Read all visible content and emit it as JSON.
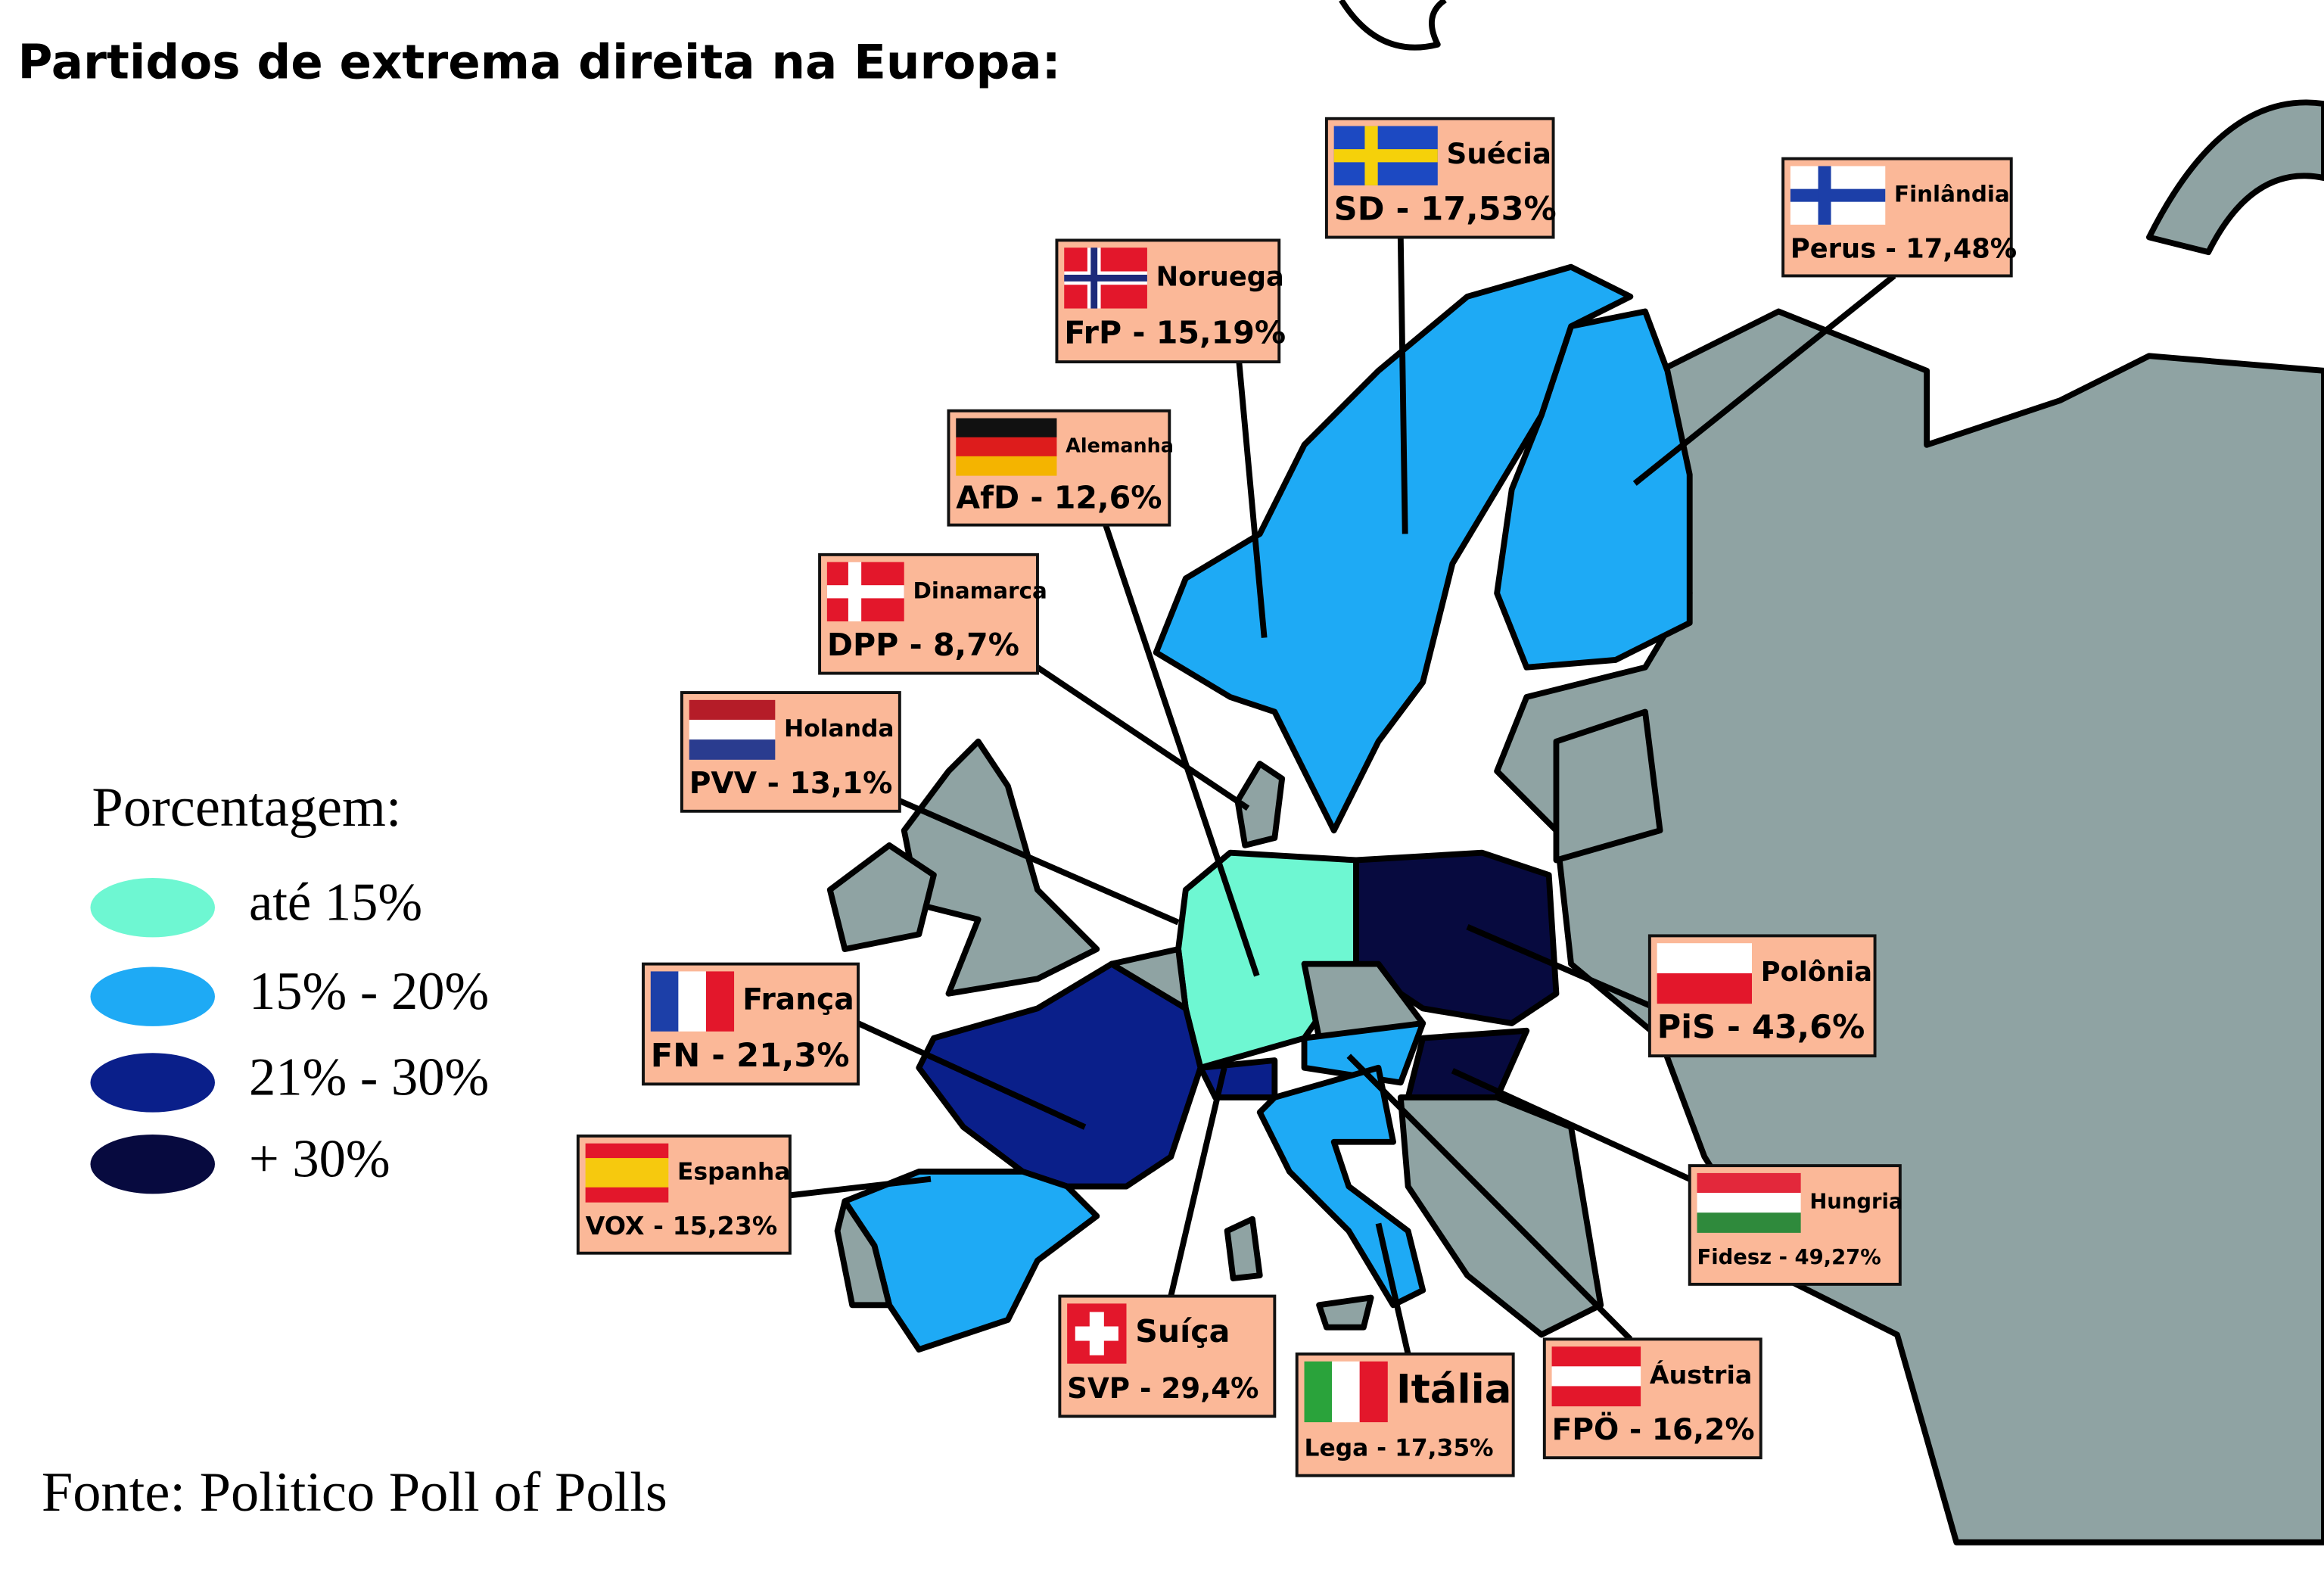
{
  "title": "Partidos de extrema direita na Europa:",
  "legend": {
    "title": "Porcentagem:",
    "items": [
      {
        "label": "até 15%",
        "color": "#6ef7d2"
      },
      {
        "label": "15% - 20%",
        "color": "#1eaaf5"
      },
      {
        "label": "21% -  30%",
        "color": "#0a1f8a"
      },
      {
        "label": "+ 30%",
        "color": "#070a3f"
      }
    ]
  },
  "callouts": [
    {
      "country": "Suécia",
      "party": "SD - 17,53%"
    },
    {
      "country": "Finlândia",
      "party": "Perus - 17,48%"
    },
    {
      "country": "Noruega",
      "party": "FrP - 15,19%"
    },
    {
      "country": "Alemanha",
      "party": "AfD - 12,6%"
    },
    {
      "country": "Dinamarca",
      "party": "DPP - 8,7%"
    },
    {
      "country": "Holanda",
      "party": "PVV - 13,1%"
    },
    {
      "country": "Polônia",
      "party": "PiS - 43,6%"
    },
    {
      "country": "França",
      "party": "FN - 21,3%"
    },
    {
      "country": "Espanha",
      "party": "VOX - 15,23%"
    },
    {
      "country": "Hungria",
      "party": "Fidesz - 49,27%"
    },
    {
      "country": "Suíça",
      "party": "SVP - 29,4%"
    },
    {
      "country": "Itália",
      "party": "Lega - 17,35%"
    },
    {
      "country": "Áustria",
      "party": "FPÖ - 16,2%"
    }
  ],
  "source": "Fonte: Politico Poll of Polls"
}
